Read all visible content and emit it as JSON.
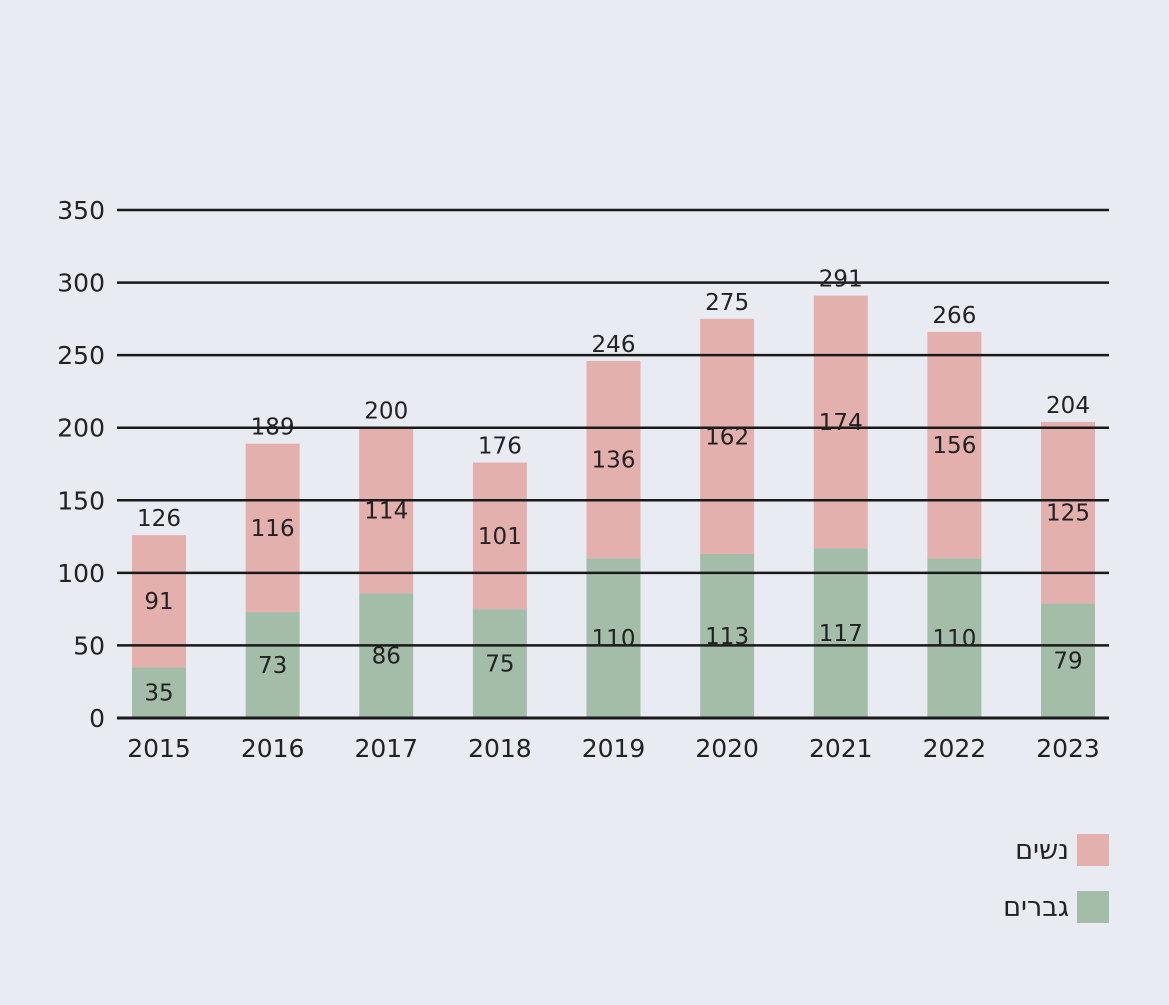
{
  "chart_data": {
    "type": "bar",
    "stacked": true,
    "categories": [
      "2015",
      "2016",
      "2017",
      "2018",
      "2019",
      "2020",
      "2021",
      "2022",
      "2023"
    ],
    "series": [
      {
        "name": "גברים",
        "color": "#a3bda9",
        "values": [
          35,
          73,
          86,
          75,
          110,
          113,
          117,
          110,
          79
        ]
      },
      {
        "name": "נשים",
        "color": "#e3b0ae",
        "values": [
          91,
          116,
          114,
          101,
          136,
          162,
          174,
          156,
          125
        ]
      }
    ],
    "totals": [
      126,
      189,
      200,
      176,
      246,
      275,
      291,
      266,
      204
    ],
    "y_ticks": [
      0,
      50,
      100,
      150,
      200,
      250,
      300,
      350
    ],
    "ylim": [
      0,
      350
    ],
    "grid": true,
    "legend_position": "bottom-right",
    "xlabel": "",
    "ylabel": "",
    "title": ""
  }
}
